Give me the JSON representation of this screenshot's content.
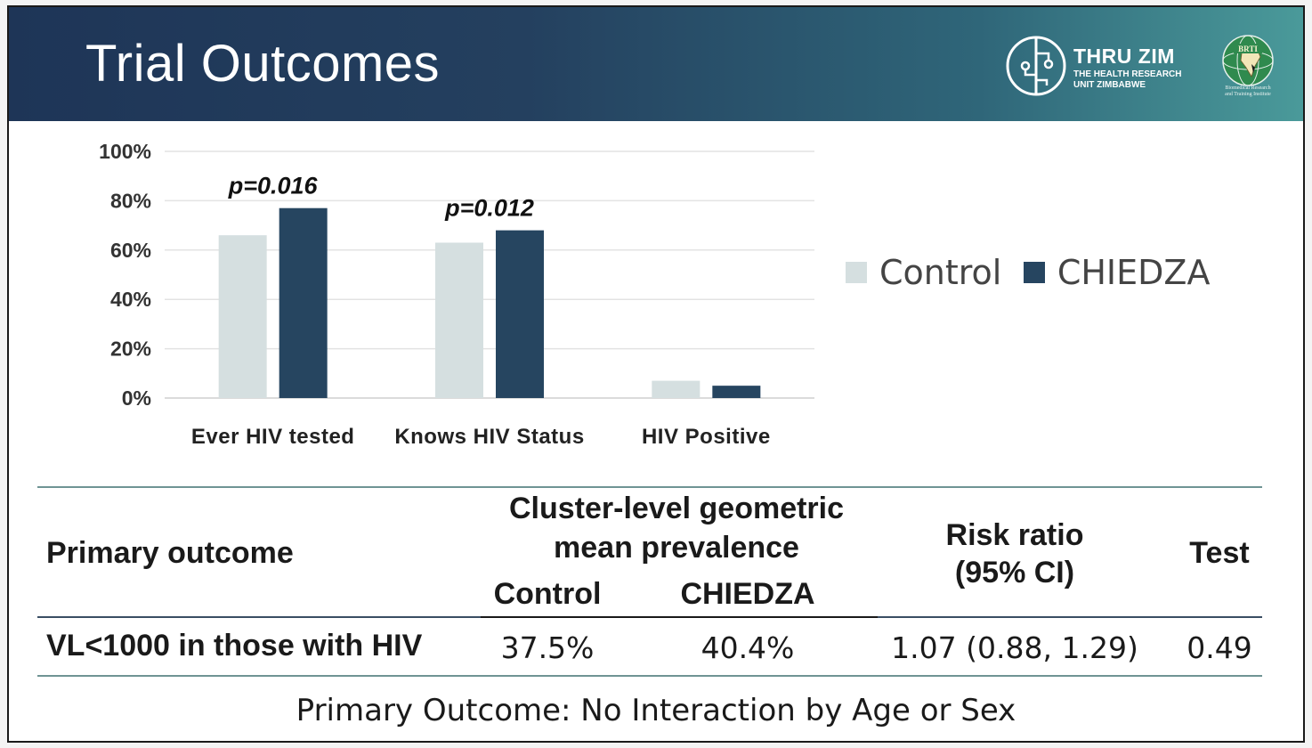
{
  "slide": {
    "title": "Trial Outcomes",
    "header_colors": [
      "#1e3557",
      "#4a9a9a"
    ]
  },
  "logos": {
    "thru_zim": {
      "name": "THRU ZIM",
      "subtitle_line1": "THE HEALTH RESEARCH",
      "subtitle_line2": "UNIT ZIMBABWE",
      "icon": "circuit-circle-icon"
    },
    "brti": {
      "badge": "BRTI",
      "caption_line1": "Biomedical Research",
      "caption_line2": "and Training Institute",
      "icon": "globe-africa-icon"
    }
  },
  "chart_data": {
    "type": "bar",
    "title": "",
    "xlabel": "",
    "ylabel": "",
    "categories": [
      "Ever HIV tested",
      "Knows HIV Status",
      "HIV Positive"
    ],
    "series": [
      {
        "name": "Control",
        "color": "#d5dfe0",
        "values": [
          66,
          63,
          7
        ]
      },
      {
        "name": "CHIEDZA",
        "color": "#264560",
        "values": [
          77,
          68,
          5
        ]
      }
    ],
    "y_ticks": [
      "0%",
      "20%",
      "40%",
      "60%",
      "80%",
      "100%"
    ],
    "ylim": [
      0,
      100
    ],
    "annotations": [
      "p=0.016",
      "p=0.012",
      ""
    ],
    "grid": true,
    "legend_position": "right"
  },
  "table": {
    "outcome_header": "Primary outcome",
    "prevalence_header_line1": "Cluster-level geometric",
    "prevalence_header_line2": "mean prevalence",
    "control_header": "Control",
    "chiedza_header": "CHIEDZA",
    "risk_header_line1": "Risk ratio",
    "risk_header_line2": "(95% CI)",
    "test_header": "Test",
    "row": {
      "outcome": "VL<1000 in those with HIV",
      "control": "37.5%",
      "chiedza": "40.4%",
      "risk_ratio": "1.07 (0.88, 1.29)",
      "test": "0.49"
    },
    "line_color": "#6f9494"
  },
  "footnote": "Primary Outcome: No Interaction by Age or Sex"
}
